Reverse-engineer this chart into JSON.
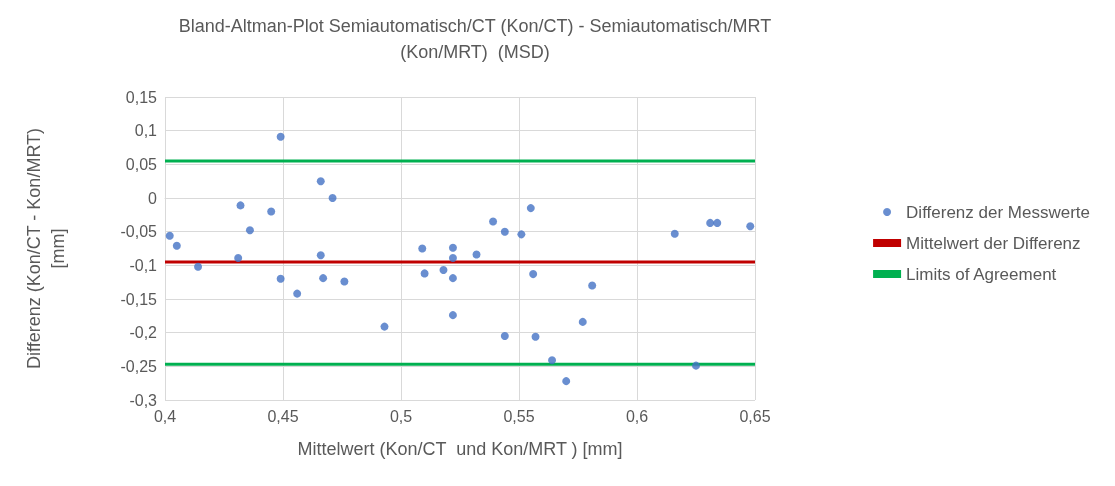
{
  "chart_data": {
    "type": "scatter",
    "title": "Bland-Altman-Plot Semiautomatisch/CT (Kon/CT) - Semiautomatisch/MRT\n(Kon/MRT)  (MSD)",
    "xlabel": "Mittelwert (Kon/CT  und Kon/MRT ) [mm]",
    "ylabel": "Differenz (Kon/CT - Kon/MRT)\n[mm]",
    "series": [
      {
        "name": "Differenz der Messwerte",
        "color": "#4472c4",
        "x": [
          0.402,
          0.405,
          0.414,
          0.431,
          0.432,
          0.436,
          0.445,
          0.449,
          0.449,
          0.456,
          0.466,
          0.466,
          0.471,
          0.467,
          0.476,
          0.493,
          0.509,
          0.51,
          0.518,
          0.522,
          0.522,
          0.522,
          0.522,
          0.532,
          0.539,
          0.544,
          0.544,
          0.551,
          0.555,
          0.556,
          0.557,
          0.564,
          0.57,
          0.577,
          0.581,
          0.616,
          0.631,
          0.634,
          0.648,
          0.625
        ],
        "values": [
          -0.056,
          -0.071,
          -0.102,
          -0.089,
          -0.011,
          -0.048,
          -0.02,
          0.091,
          -0.12,
          -0.142,
          0.025,
          -0.085,
          0.0,
          -0.119,
          -0.124,
          -0.191,
          -0.075,
          -0.112,
          -0.107,
          -0.074,
          -0.089,
          -0.119,
          -0.174,
          -0.084,
          -0.035,
          -0.05,
          -0.205,
          -0.054,
          -0.015,
          -0.113,
          -0.206,
          -0.241,
          -0.272,
          -0.184,
          -0.13,
          -0.053,
          -0.037,
          -0.037,
          -0.042,
          -0.249
        ]
      }
    ],
    "ref_lines": [
      {
        "axis": "y",
        "value": -0.095,
        "label": "Mittelwert der Differenz",
        "color": "#c00000"
      },
      {
        "axis": "y",
        "value": 0.055,
        "label": "Limits of Agreement",
        "color": "#00b050"
      },
      {
        "axis": "y",
        "value": -0.247,
        "color": "#00b050"
      }
    ],
    "xlim": [
      0.4,
      0.65
    ],
    "xticks": [
      {
        "value": 0.4,
        "label": "0,4"
      },
      {
        "value": 0.45,
        "label": "0,45"
      },
      {
        "value": 0.5,
        "label": "0,5"
      },
      {
        "value": 0.55,
        "label": "0,55"
      },
      {
        "value": 0.6,
        "label": "0,6"
      },
      {
        "value": 0.65,
        "label": "0,65"
      }
    ],
    "ylim": [
      -0.3,
      0.15
    ],
    "yticks": [
      {
        "value": 0.15,
        "label": "0,15"
      },
      {
        "value": 0.1,
        "label": "0,1"
      },
      {
        "value": 0.05,
        "label": "0,05"
      },
      0,
      {
        "value": -0.05,
        "label": "-0,05"
      },
      {
        "value": -0.1,
        "label": "-0,1"
      },
      {
        "value": -0.15,
        "label": "-0,15"
      },
      {
        "value": -0.2,
        "label": "-0,2"
      },
      {
        "value": -0.25,
        "label": "-0,25"
      },
      {
        "value": -0.3,
        "label": "-0,3"
      }
    ],
    "grid": true,
    "legend": "right",
    "marker": "circle"
  }
}
